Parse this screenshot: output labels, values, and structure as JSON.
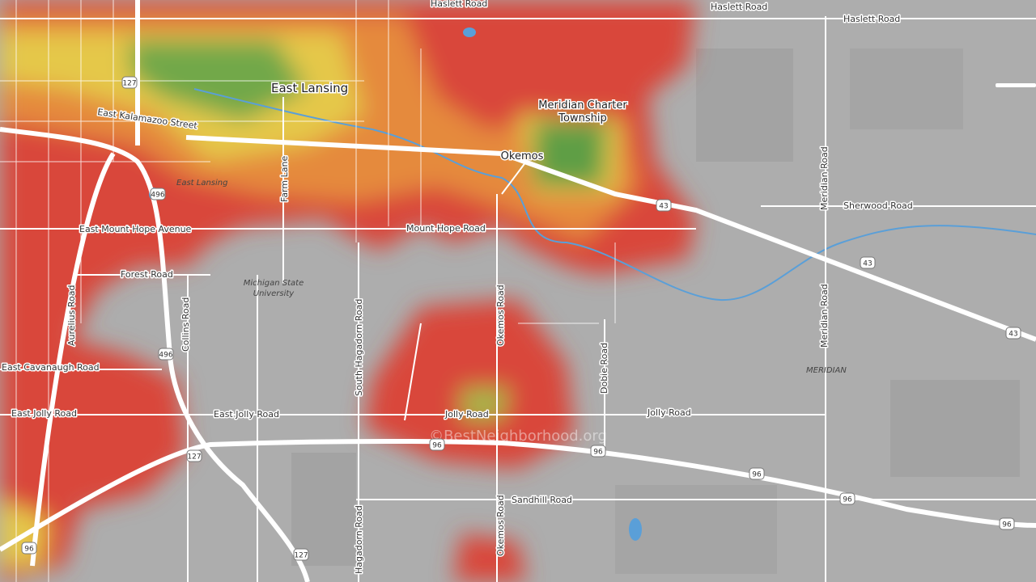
{
  "map": {
    "labels": [
      "Haslett Road",
      "Haslett Road",
      "Haslett Road",
      "East Lansing",
      "Meridian Charter",
      "Township",
      "Okemos",
      "East Kalamazoo Street",
      "East Lansing",
      "Farm Lane",
      "East Mount Hope Avenue",
      "Mount Hope Road",
      "Sherwood Road",
      "Meridian Road",
      "Meridian Road",
      "Forest Road",
      "Michigan State",
      "University",
      "South Hagadorn Road",
      "Collins Road",
      "Aurelius Road",
      "Okemos Road",
      "Okemos Road",
      "Dobie Road",
      "MERIDIAN",
      "East Cavanaugh Road",
      "East Jolly Road",
      "East Jolly Road",
      "Jolly Road",
      "Jolly Road",
      "Sandhill Road",
      "Hagadorn Road"
    ],
    "shields": [
      "127",
      "496",
      "496",
      "43",
      "43",
      "43",
      "127",
      "96",
      "96",
      "96",
      "96",
      "96",
      "96",
      "127"
    ],
    "watermark": "©BestNeighborhood.org"
  }
}
